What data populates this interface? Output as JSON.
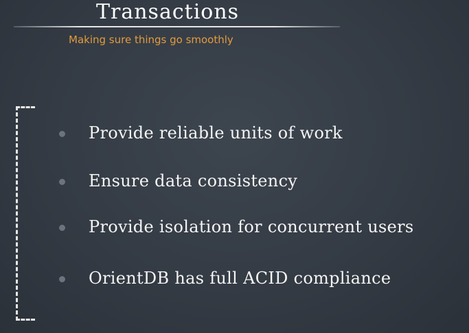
{
  "slide": {
    "title": "Transactions",
    "subtitle": "Making sure things go smoothly",
    "bullets": [
      "Provide reliable units of work",
      "Ensure data consistency",
      "Provide isolation for concurrent users",
      "OrientDB has full ACID compliance"
    ]
  },
  "colors": {
    "background": "#343b44",
    "title": "#ffffff",
    "subtitle": "#e29b3d",
    "bullet_text": "#f4f4f4",
    "bullet_dot": "#6c737c"
  }
}
